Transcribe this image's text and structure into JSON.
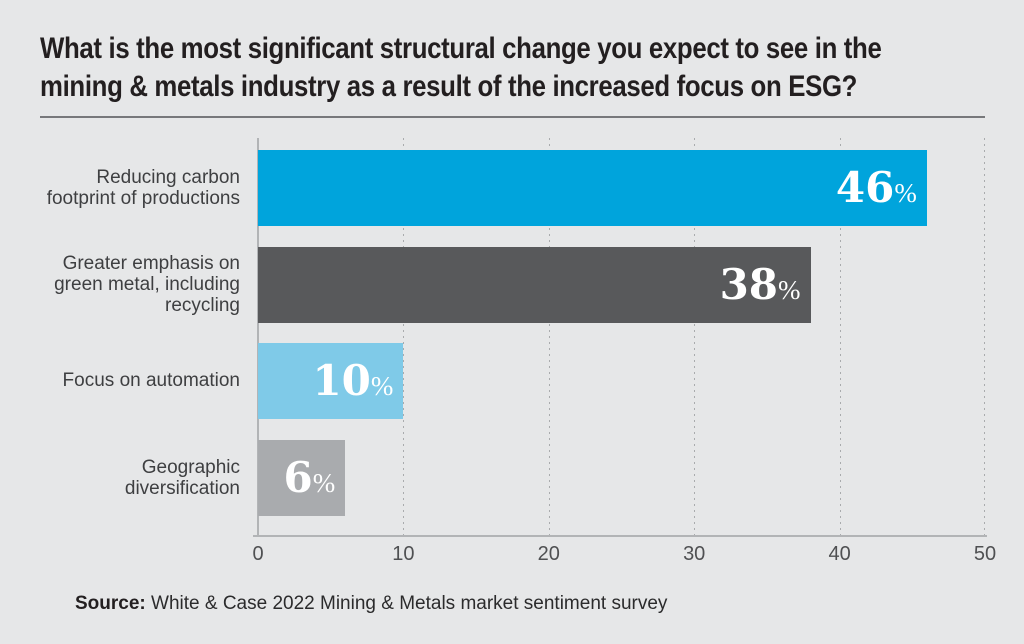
{
  "title": {
    "line1": "What is the most significant structural change you expect to see in the",
    "line2": "mining & metals industry as a result of the increased focus on ESG?"
  },
  "chart_data": {
    "type": "bar",
    "orientation": "horizontal",
    "title": "What is the most significant structural change you expect to see in the mining & metals industry as a result of the increased focus on ESG?",
    "categories": [
      "Reducing carbon footprint of productions",
      "Greater emphasis on green metal, including recycling",
      "Focus on automation",
      "Geographic diversification"
    ],
    "category_lines": [
      [
        "Reducing carbon",
        "footprint of productions"
      ],
      [
        "Greater emphasis on",
        "green metal, including",
        "recycling"
      ],
      [
        "Focus on automation",
        "",
        ""
      ],
      [
        "Geographic",
        "diversification",
        ""
      ]
    ],
    "values": [
      46,
      38,
      10,
      6
    ],
    "unit": "%",
    "bar_colors": [
      "#00a4dc",
      "#58595b",
      "#7fcae8",
      "#a9abae"
    ],
    "value_label_color": "#ffffff",
    "xlim": [
      0,
      50
    ],
    "x_ticks": [
      "0",
      "10",
      "20",
      "30",
      "40",
      "50"
    ],
    "grid": "vertical-dotted",
    "legend": "none"
  },
  "source": {
    "label": "Source:",
    "text": " White & Case 2022 Mining & Metals market sentiment survey"
  },
  "colors": {
    "background": "#e6e7e8",
    "title_text": "#231f20",
    "category_text": "#3e3f41",
    "tick_text": "#4f5052",
    "axis_line": "#b2b4b6",
    "gridline": "#a9abad",
    "divider": "#77787b",
    "accent_blue": "#00a4dc",
    "dark_gray": "#58595b",
    "light_blue": "#7fcae8",
    "medium_gray": "#a9abae"
  }
}
